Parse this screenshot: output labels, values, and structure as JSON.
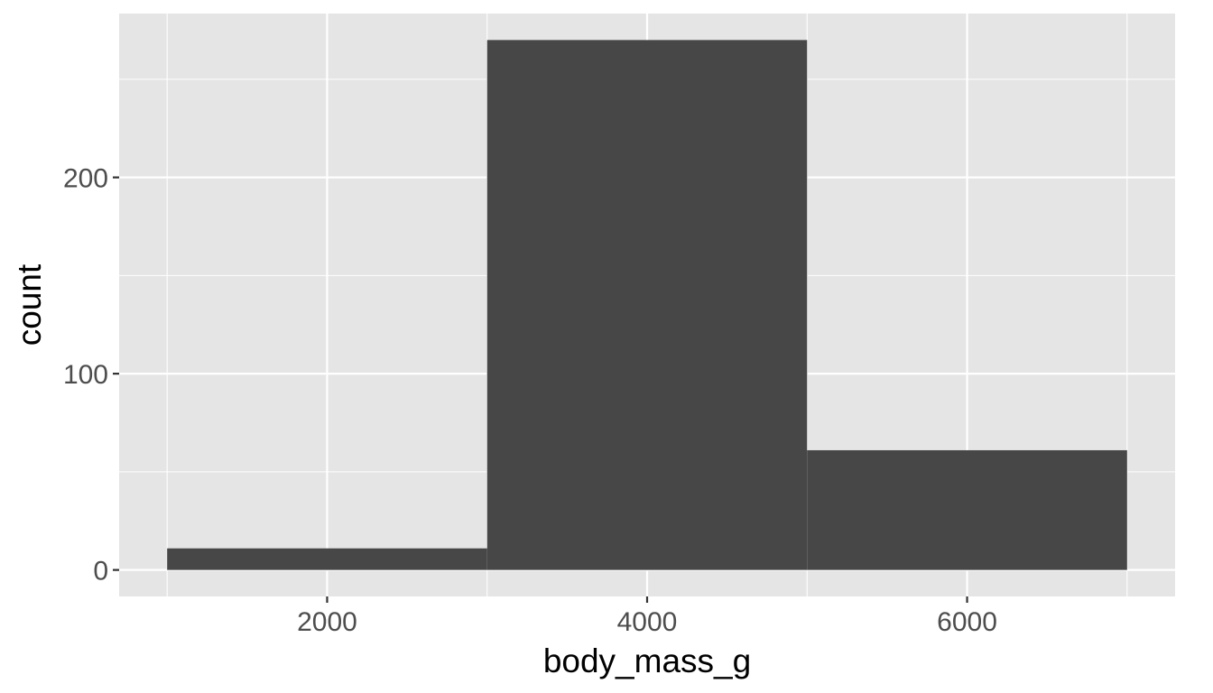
{
  "chart_data": {
    "type": "bar",
    "subtype": "histogram",
    "bins": [
      {
        "x0": 1000,
        "x1": 3000,
        "count": 11
      },
      {
        "x0": 3000,
        "x1": 5000,
        "count": 270
      },
      {
        "x0": 5000,
        "x1": 7000,
        "count": 61
      }
    ],
    "xlabel": "body_mass_g",
    "ylabel": "count",
    "xlim": [
      700,
      7300
    ],
    "ylim": [
      -13.5,
      283.5
    ],
    "x_ticks": [
      2000,
      4000,
      6000
    ],
    "x_tick_labels": [
      "2000",
      "4000",
      "6000"
    ],
    "y_ticks": [
      0,
      100,
      200
    ],
    "y_tick_labels": [
      "0",
      "100",
      "200"
    ],
    "x_minor_ticks": [
      1000,
      3000,
      5000,
      7000
    ],
    "y_minor_ticks": [
      50,
      150,
      250
    ],
    "grid": true,
    "legend": "none",
    "colors": {
      "panel_background": "#e5e5e5",
      "grid_line": "#ffffff",
      "bar_fill": "#474747",
      "tick_mark": "#333333",
      "tick_label": "#4d4d4d",
      "axis_title": "#000000"
    }
  }
}
